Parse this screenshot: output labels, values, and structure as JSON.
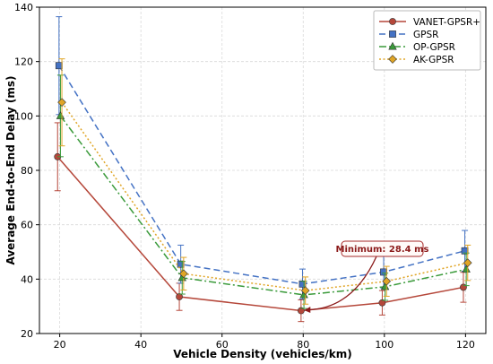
{
  "chart_data": {
    "type": "line",
    "title": "",
    "xlabel": "Vehicle Density (vehicles/km)",
    "ylabel": "Average End-to-End Delay (ms)",
    "xlim": [
      15,
      125
    ],
    "ylim": [
      20,
      140
    ],
    "xticks": [
      20,
      40,
      60,
      80,
      100,
      120
    ],
    "yticks": [
      20,
      40,
      60,
      80,
      100,
      120,
      140
    ],
    "grid": true,
    "legend_position": "top-right",
    "series": [
      {
        "name": "VANET-GPSR+",
        "color": "#b5473a",
        "linestyle": "solid",
        "marker": "circle",
        "x": [
          20,
          50,
          80,
          100,
          120
        ],
        "y": [
          85,
          33.5,
          28.4,
          31.3,
          37
        ],
        "err": [
          12.5,
          5,
          4,
          4.5,
          5.5
        ]
      },
      {
        "name": "GPSR",
        "color": "#4472c4",
        "linestyle": "dashed",
        "marker": "square",
        "x": [
          20,
          50,
          80,
          100,
          120
        ],
        "y": [
          118.5,
          45.5,
          38.2,
          42.6,
          50.4
        ],
        "err": [
          18,
          7,
          5.5,
          6,
          7.5
        ]
      },
      {
        "name": "OP-GPSR",
        "color": "#3a9a3a",
        "linestyle": "dashdot",
        "marker": "triangle",
        "x": [
          20,
          50,
          80,
          100,
          120
        ],
        "y": [
          100,
          40.5,
          34.2,
          37.2,
          43.6
        ],
        "err": [
          15,
          6,
          5,
          5,
          6
        ]
      },
      {
        "name": "AK-GPSR",
        "color": "#e0a526",
        "linestyle": "dotted",
        "marker": "diamond",
        "x": [
          20,
          50,
          80,
          100,
          120
        ],
        "y": [
          105,
          42,
          35.8,
          39.2,
          46
        ],
        "err": [
          16,
          6,
          5,
          5.5,
          6.5
        ]
      }
    ],
    "annotation": {
      "text": "Minimum: 28.4 ms",
      "target_x": 80,
      "target_y": 28.4
    }
  }
}
